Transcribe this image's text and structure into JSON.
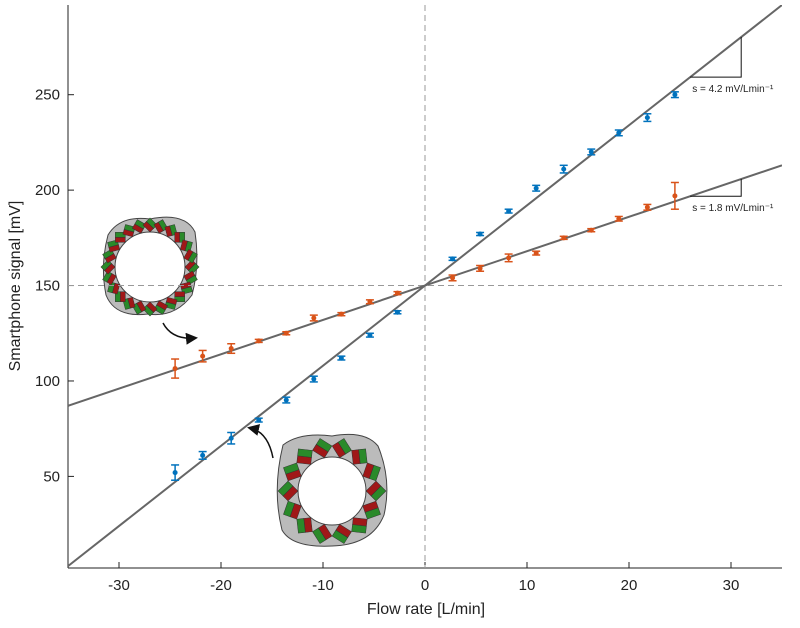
{
  "chart_data": {
    "type": "scatter",
    "xlabel": "Flow rate [L/min]",
    "ylabel": "Smartphone signal [mV]",
    "xlim": [
      -35,
      35
    ],
    "ylim": [
      2,
      297
    ],
    "xticks": [
      -30,
      -20,
      -10,
      0,
      10,
      20,
      30
    ],
    "yticks": [
      50,
      100,
      150,
      200,
      250
    ],
    "reference_lines": {
      "x": 0,
      "y": 150
    },
    "series": [
      {
        "color": "#0072bd",
        "x": [
          -24.5,
          -21.8,
          -19,
          -16.3,
          -13.6,
          -10.9,
          -8.2,
          -5.4,
          -2.7,
          2.7,
          5.4,
          8.2,
          10.9,
          13.6,
          16.3,
          19,
          21.8,
          24.5
        ],
        "values": [
          52,
          61,
          70,
          79.5,
          90,
          101,
          112,
          124,
          136,
          164,
          177,
          189,
          201,
          211,
          220,
          230,
          238,
          250
        ],
        "errors": [
          4,
          2,
          3,
          1,
          1.5,
          1.5,
          1,
          1,
          0.8,
          0.8,
          0.8,
          1,
          1.5,
          2,
          1.5,
          1.5,
          2,
          1.5
        ]
      },
      {
        "color": "#d95319",
        "x": [
          -24.5,
          -21.8,
          -19,
          -16.3,
          -13.6,
          -10.9,
          -8.2,
          -5.4,
          -2.7,
          2.7,
          5.4,
          8.2,
          10.9,
          13.6,
          16.3,
          19,
          21.8,
          24.5
        ],
        "values": [
          106.5,
          113,
          117,
          121,
          125,
          133,
          135,
          141.5,
          146,
          154,
          159,
          164.5,
          167,
          175,
          179,
          185,
          191,
          197
        ],
        "errors": [
          5,
          3,
          2.5,
          0.8,
          0.8,
          1.5,
          0.8,
          1,
          0.8,
          1.5,
          1.5,
          2,
          1,
          0.8,
          0.8,
          1.2,
          1.5,
          7
        ]
      }
    ],
    "fits": [
      {
        "slope": 4.2,
        "intercept": 150,
        "color": "#666666",
        "label": "s = 4.2 mV/Lmin⁻¹"
      },
      {
        "slope": 1.8,
        "intercept": 150,
        "color": "#666666",
        "label": "s = 1.8 mV/Lmin⁻¹"
      }
    ]
  }
}
